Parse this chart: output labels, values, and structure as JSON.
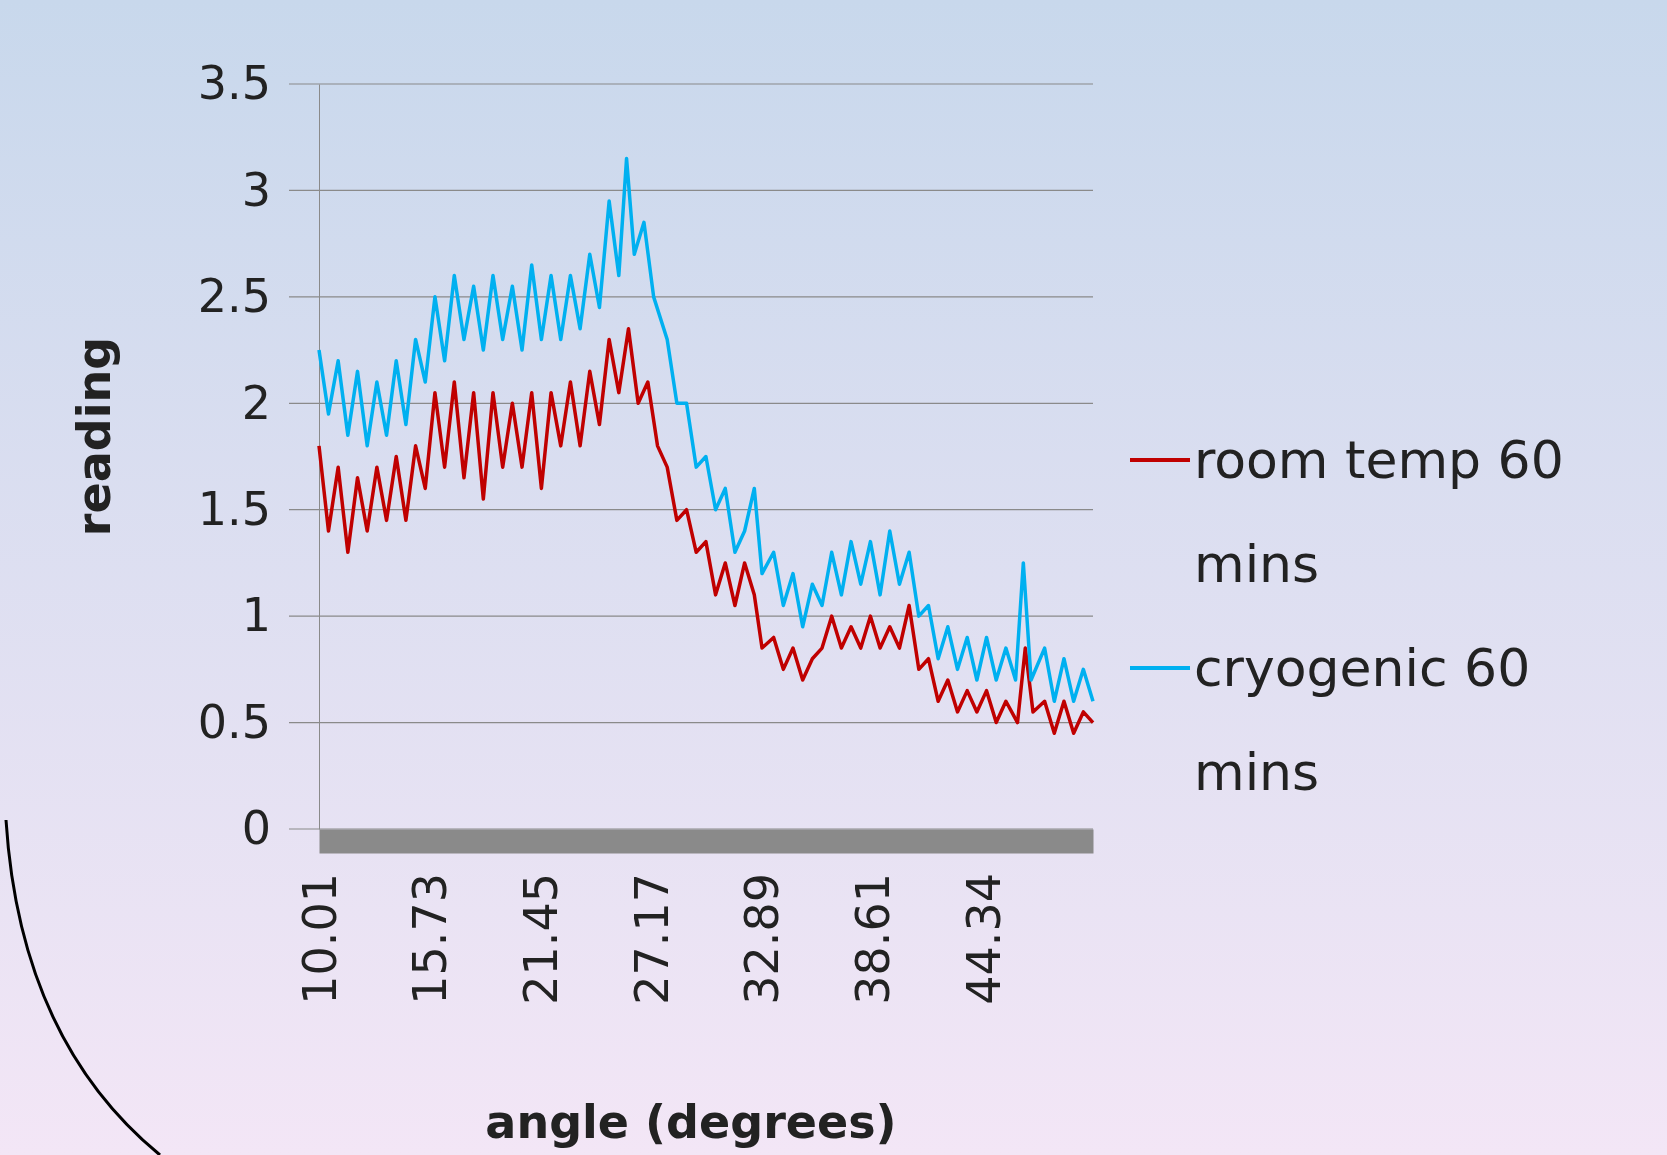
{
  "chart_data": {
    "type": "line",
    "xlabel": "angle (degrees)",
    "ylabel": "reading",
    "xlim": [
      10.01,
      50
    ],
    "xticks": [
      10.01,
      15.73,
      21.45,
      27.17,
      32.89,
      38.61,
      44.34
    ],
    "ylim": [
      0,
      3.5
    ],
    "yticks": [
      0,
      0.5,
      1,
      1.5,
      2,
      2.5,
      3,
      3.5
    ],
    "grid": "y",
    "legend": "right",
    "marker": "none",
    "line_style": "solid",
    "series": [
      {
        "name": "room temp 60 mins",
        "color": "#c00000",
        "x": [
          10.01,
          10.5,
          11,
          11.5,
          12,
          12.5,
          13,
          13.5,
          14,
          14.5,
          15,
          15.5,
          16,
          16.5,
          17,
          17.5,
          18,
          18.5,
          19,
          19.5,
          20,
          20.5,
          21,
          21.5,
          22,
          22.5,
          23,
          23.5,
          24,
          24.5,
          25,
          25.5,
          26,
          26.5,
          27,
          27.5,
          28,
          28.5,
          29,
          29.5,
          30,
          30.5,
          31,
          31.5,
          32,
          32.5,
          32.9,
          33.5,
          34,
          34.5,
          35,
          35.5,
          36,
          36.5,
          37,
          37.5,
          38,
          38.5,
          39,
          39.5,
          40,
          40.5,
          41,
          41.5,
          42,
          42.5,
          43,
          43.5,
          44,
          44.5,
          45,
          45.5,
          46.1,
          46.5,
          46.9,
          47.5,
          48,
          48.5,
          49,
          49.5,
          50
        ],
        "values": [
          1.8,
          1.4,
          1.7,
          1.3,
          1.65,
          1.4,
          1.7,
          1.45,
          1.75,
          1.45,
          1.8,
          1.6,
          2.05,
          1.7,
          2.1,
          1.65,
          2.05,
          1.55,
          2.05,
          1.7,
          2.0,
          1.7,
          2.05,
          1.6,
          2.05,
          1.8,
          2.1,
          1.8,
          2.15,
          1.9,
          2.3,
          2.05,
          2.35,
          2.0,
          2.1,
          1.8,
          1.7,
          1.45,
          1.5,
          1.3,
          1.35,
          1.1,
          1.25,
          1.05,
          1.25,
          1.1,
          0.85,
          0.9,
          0.75,
          0.85,
          0.7,
          0.8,
          0.85,
          1.0,
          0.85,
          0.95,
          0.85,
          1.0,
          0.85,
          0.95,
          0.85,
          1.05,
          0.75,
          0.8,
          0.6,
          0.7,
          0.55,
          0.65,
          0.55,
          0.65,
          0.5,
          0.6,
          0.5,
          0.85,
          0.55,
          0.6,
          0.45,
          0.6,
          0.45,
          0.55,
          0.5
        ]
      },
      {
        "name": "cryogenic 60 mins",
        "color": "#00b0f0",
        "x": [
          10.01,
          10.5,
          11,
          11.5,
          12,
          12.5,
          13,
          13.5,
          14,
          14.5,
          15,
          15.5,
          16,
          16.5,
          17,
          17.5,
          18,
          18.5,
          19,
          19.5,
          20,
          20.5,
          21,
          21.5,
          22,
          22.5,
          23,
          23.5,
          24,
          24.5,
          25,
          25.5,
          25.9,
          26.3,
          26.8,
          27.3,
          28,
          28.5,
          29,
          29.5,
          30,
          30.5,
          31,
          31.5,
          32,
          32.5,
          32.9,
          33.5,
          34,
          34.5,
          35,
          35.5,
          36,
          36.5,
          37,
          37.5,
          38,
          38.5,
          39,
          39.5,
          40,
          40.5,
          41,
          41.5,
          42,
          42.5,
          43,
          43.5,
          44,
          44.5,
          45,
          45.5,
          46,
          46.4,
          46.8,
          47.5,
          48,
          48.5,
          49,
          49.5,
          50
        ],
        "values": [
          2.25,
          1.95,
          2.2,
          1.85,
          2.15,
          1.8,
          2.1,
          1.85,
          2.2,
          1.9,
          2.3,
          2.1,
          2.5,
          2.2,
          2.6,
          2.3,
          2.55,
          2.25,
          2.6,
          2.3,
          2.55,
          2.25,
          2.65,
          2.3,
          2.6,
          2.3,
          2.6,
          2.35,
          2.7,
          2.45,
          2.95,
          2.6,
          3.15,
          2.7,
          2.85,
          2.5,
          2.3,
          2.0,
          2.0,
          1.7,
          1.75,
          1.5,
          1.6,
          1.3,
          1.4,
          1.6,
          1.2,
          1.3,
          1.05,
          1.2,
          0.95,
          1.15,
          1.05,
          1.3,
          1.1,
          1.35,
          1.15,
          1.35,
          1.1,
          1.4,
          1.15,
          1.3,
          1.0,
          1.05,
          0.8,
          0.95,
          0.75,
          0.9,
          0.7,
          0.9,
          0.7,
          0.85,
          0.7,
          1.25,
          0.7,
          0.85,
          0.6,
          0.8,
          0.6,
          0.75,
          0.6
        ]
      }
    ]
  }
}
